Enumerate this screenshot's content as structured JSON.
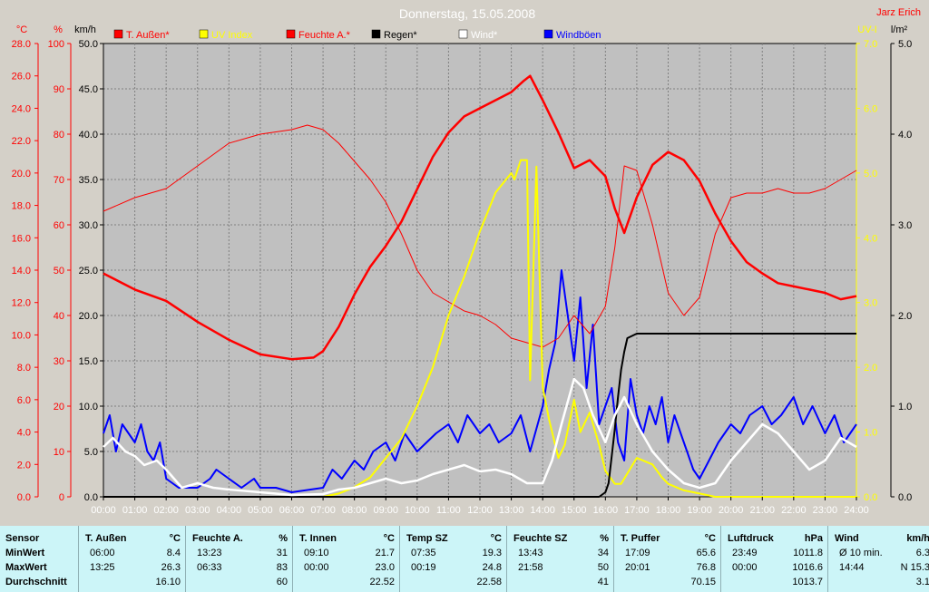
{
  "chart_data": {
    "type": "line",
    "title": "Donnerstag, 15.05.2008",
    "credit": "Jarz Erich",
    "x_ticks": [
      "00:00",
      "01:00",
      "02:00",
      "03:00",
      "04:00",
      "05:00",
      "06:00",
      "07:00",
      "08:00",
      "09:00",
      "10:00",
      "11:00",
      "12:00",
      "13:00",
      "14:00",
      "15:00",
      "16:00",
      "17:00",
      "18:00",
      "19:00",
      "20:00",
      "21:00",
      "22:00",
      "23:00",
      "24:00"
    ],
    "xlim": [
      0,
      24
    ],
    "grid": true,
    "axes": [
      {
        "unit": "°C",
        "color": "#ff0000",
        "range": [
          0,
          28
        ],
        "ticks": [
          "0.0",
          "2.0",
          "4.0",
          "6.0",
          "8.0",
          "10.0",
          "12.0",
          "14.0",
          "16.0",
          "18.0",
          "20.0",
          "22.0",
          "24.0",
          "26.0",
          "28.0"
        ]
      },
      {
        "unit": "%",
        "color": "#ff0000",
        "range": [
          0,
          100
        ],
        "ticks": [
          "0",
          "10",
          "20",
          "30",
          "40",
          "50",
          "60",
          "70",
          "80",
          "90",
          "100"
        ]
      },
      {
        "unit": "km/h",
        "color": "#000000",
        "range": [
          0,
          50
        ],
        "ticks": [
          "0.0",
          "5.0",
          "10.0",
          "15.0",
          "20.0",
          "25.0",
          "30.0",
          "35.0",
          "40.0",
          "45.0",
          "50.0"
        ]
      },
      {
        "unit": "UV-I",
        "color": "#ffff00",
        "range": [
          0,
          7
        ],
        "ticks": [
          "0.0",
          "1.0",
          "2.0",
          "3.0",
          "4.0",
          "5.0",
          "6.0",
          "7.0"
        ]
      },
      {
        "unit": "l/m²",
        "color": "#000000",
        "range": [
          0,
          5
        ],
        "ticks": [
          "0.0",
          "1.0",
          "2.0",
          "3.0",
          "4.0",
          "5.0"
        ]
      }
    ],
    "series": [
      {
        "name": "T. Außen*",
        "color": "#ff0000",
        "axis": 0,
        "x": [
          0,
          1,
          2,
          3,
          4,
          5,
          6,
          6.7,
          7,
          7.5,
          8,
          8.5,
          9,
          9.5,
          10,
          10.5,
          11,
          11.5,
          12,
          12.5,
          13,
          13.4,
          13.6,
          14,
          14.5,
          15,
          15.5,
          16,
          16.3,
          16.6,
          17,
          17.5,
          18,
          18.5,
          19,
          19.5,
          20,
          20.5,
          21,
          21.5,
          22,
          22.5,
          23,
          23.5,
          24
        ],
        "y": [
          13.8,
          12.8,
          12.1,
          10.8,
          9.7,
          8.8,
          8.5,
          8.6,
          9.0,
          10.5,
          12.5,
          14.2,
          15.5,
          17.0,
          19.0,
          21.0,
          22.5,
          23.5,
          24.0,
          24.5,
          25.0,
          25.7,
          26.0,
          24.5,
          22.5,
          20.3,
          20.8,
          19.8,
          17.8,
          16.3,
          18.5,
          20.5,
          21.3,
          20.8,
          19.5,
          17.5,
          15.8,
          14.5,
          13.8,
          13.2,
          13.0,
          12.8,
          12.6,
          12.2,
          12.4
        ]
      },
      {
        "name": "UV Index",
        "color": "#ffff00",
        "axis": 3,
        "x": [
          0,
          5.5,
          6,
          7,
          7.5,
          8,
          8.5,
          9,
          9.5,
          10,
          10.5,
          11,
          11.5,
          12,
          12.5,
          13,
          13.1,
          13.3,
          13.5,
          13.6,
          13.8,
          14,
          14.2,
          14.5,
          14.7,
          15,
          15.2,
          15.5,
          15.8,
          16,
          16.3,
          16.5,
          17,
          17.5,
          17.8,
          18,
          18.5,
          19,
          19.5,
          20,
          24
        ],
        "y": [
          0,
          0,
          0,
          0,
          0.05,
          0.15,
          0.3,
          0.6,
          0.9,
          1.4,
          2.0,
          2.8,
          3.4,
          4.1,
          4.7,
          5.0,
          4.9,
          5.2,
          5.2,
          1.8,
          5.1,
          1.7,
          1.2,
          0.6,
          0.8,
          1.5,
          1.0,
          1.3,
          0.8,
          0.4,
          0.2,
          0.2,
          0.6,
          0.5,
          0.3,
          0.2,
          0.1,
          0.05,
          0,
          0,
          0
        ]
      },
      {
        "name": "Feuchte A.*",
        "color": "#ff0000",
        "axis": 1,
        "x": [
          0,
          1,
          2,
          3,
          4,
          5,
          6,
          6.5,
          7,
          7.5,
          8,
          8.5,
          9,
          9.5,
          10,
          10.5,
          11,
          11.5,
          12,
          12.5,
          13,
          13.5,
          14,
          14.5,
          15,
          15.5,
          16,
          16.3,
          16.6,
          17,
          17.5,
          18,
          18.5,
          19,
          19.5,
          20,
          20.5,
          21,
          21.5,
          22,
          22.5,
          23,
          23.5,
          24
        ],
        "y": [
          63,
          66,
          68,
          73,
          78,
          80,
          81,
          82,
          81,
          78,
          74,
          70,
          65,
          58,
          50,
          45,
          43,
          41,
          40,
          38,
          35,
          34,
          33,
          35,
          40,
          36,
          42,
          55,
          73,
          72,
          60,
          45,
          40,
          44,
          58,
          66,
          67,
          67,
          68,
          67,
          67,
          68,
          70,
          72
        ]
      },
      {
        "name": "Regen*",
        "color": "#000000",
        "axis": 4,
        "x": [
          0,
          15.8,
          16,
          16.1,
          16.2,
          16.3,
          16.4,
          16.5,
          16.6,
          16.7,
          17,
          24
        ],
        "y": [
          0,
          0,
          0.05,
          0.15,
          0.45,
          0.75,
          1.1,
          1.4,
          1.6,
          1.75,
          1.8,
          1.8
        ]
      },
      {
        "name": "Wind*",
        "color": "#ffffff",
        "axis": 2,
        "x": [
          0,
          0.3,
          0.7,
          1,
          1.3,
          1.7,
          2,
          2.5,
          3,
          3.5,
          4,
          5,
          6,
          7,
          7.5,
          8,
          8.5,
          9,
          9.5,
          10,
          10.5,
          11,
          11.5,
          12,
          12.5,
          13,
          13.5,
          14,
          14.3,
          14.6,
          15,
          15.3,
          15.6,
          16,
          16.3,
          16.6,
          17,
          17.5,
          18,
          18.5,
          19,
          19.5,
          20,
          20.5,
          21,
          21.5,
          22,
          22.5,
          23,
          23.5,
          24
        ],
        "y": [
          5.5,
          6.5,
          5,
          4.5,
          3.5,
          4,
          3,
          1,
          1.5,
          1,
          0.8,
          0.5,
          0.2,
          0.3,
          0.8,
          1,
          1.5,
          2,
          1.5,
          1.8,
          2.5,
          3,
          3.5,
          2.8,
          3,
          2.5,
          1.5,
          1.5,
          4,
          8,
          13,
          12,
          9,
          6,
          9,
          11,
          8,
          5,
          3,
          1.5,
          1,
          1.5,
          4,
          6,
          8,
          7,
          5,
          3,
          4,
          6.5,
          5.5
        ]
      },
      {
        "name": "Windböen",
        "color": "#0000ff",
        "axis": 2,
        "x": [
          0,
          0.2,
          0.4,
          0.6,
          0.8,
          1,
          1.2,
          1.4,
          1.6,
          1.8,
          2,
          2.4,
          3,
          3.4,
          3.6,
          4,
          4.4,
          4.8,
          5,
          5.5,
          6,
          7,
          7.3,
          7.6,
          8,
          8.3,
          8.6,
          9,
          9.3,
          9.6,
          10,
          10.3,
          10.6,
          11,
          11.3,
          11.6,
          12,
          12.3,
          12.6,
          13,
          13.3,
          13.6,
          14,
          14.2,
          14.4,
          14.6,
          14.8,
          15,
          15.2,
          15.4,
          15.6,
          15.8,
          16,
          16.2,
          16.4,
          16.6,
          16.8,
          17,
          17.2,
          17.4,
          17.6,
          17.8,
          18,
          18.2,
          18.4,
          18.6,
          18.8,
          19,
          19.3,
          19.6,
          20,
          20.3,
          20.6,
          21,
          21.3,
          21.6,
          22,
          22.3,
          22.6,
          23,
          23.3,
          23.6,
          24
        ],
        "y": [
          7,
          9,
          5,
          8,
          7,
          6,
          8,
          5,
          4,
          6,
          2,
          1,
          1,
          2,
          3,
          2,
          1,
          2,
          1,
          1,
          0.5,
          1,
          3,
          2,
          4,
          3,
          5,
          6,
          4,
          7,
          5,
          6,
          7,
          8,
          6,
          9,
          7,
          8,
          6,
          7,
          9,
          5,
          10,
          14,
          17,
          25,
          20,
          15,
          22,
          12,
          19,
          8,
          10,
          12,
          6,
          4,
          13,
          9,
          7,
          10,
          8,
          11,
          6,
          9,
          7,
          5,
          3,
          2,
          4,
          6,
          8,
          7,
          9,
          10,
          8,
          9,
          11,
          8,
          10,
          7,
          9,
          6,
          8
        ]
      }
    ],
    "legend_position": "top"
  },
  "stats": {
    "labels": {
      "sensor": "Sensor",
      "min": "MinWert",
      "max": "MaxWert",
      "avg": "Durchschnitt"
    },
    "columns": [
      {
        "name": "T. Außen",
        "unit": "°C",
        "min_time": "06:00",
        "min_val": "8.4",
        "max_time": "13:25",
        "max_val": "26.3",
        "avg": "16.10"
      },
      {
        "name": "Feuchte A.",
        "unit": "%",
        "min_time": "13:23",
        "min_val": "31",
        "max_time": "06:33",
        "max_val": "83",
        "avg": "60"
      },
      {
        "name": "T. Innen",
        "unit": "°C",
        "min_time": "09:10",
        "min_val": "21.7",
        "max_time": "00:00",
        "max_val": "23.0",
        "avg": "22.52"
      },
      {
        "name": "Temp SZ",
        "unit": "°C",
        "min_time": "07:35",
        "min_val": "19.3",
        "max_time": "00:19",
        "max_val": "24.8",
        "avg": "22.58"
      },
      {
        "name": "Feuchte SZ",
        "unit": "%",
        "min_time": "13:43",
        "min_val": "34",
        "max_time": "21:58",
        "max_val": "50",
        "avg": "41"
      },
      {
        "name": "T. Puffer",
        "unit": "°C",
        "min_time": "17:09",
        "min_val": "65.6",
        "max_time": "20:01",
        "max_val": "76.8",
        "avg": "70.15"
      },
      {
        "name": "Luftdruck",
        "unit": "hPa",
        "min_time": "23:49",
        "min_val": "1011.8",
        "max_time": "00:00",
        "max_val": "1016.6",
        "avg": "1013.7"
      },
      {
        "name": "Wind",
        "unit": "km/h",
        "min_time": "Ø 10 min.",
        "min_val": "6.3",
        "max_time": "14:44",
        "max_val": "N 15.3",
        "avg": "3.1"
      }
    ]
  }
}
